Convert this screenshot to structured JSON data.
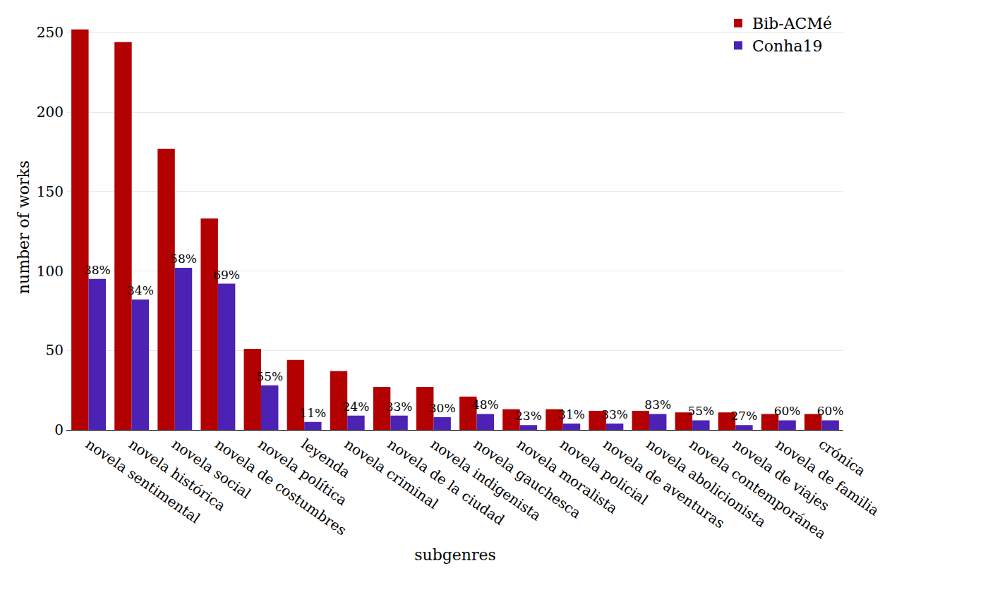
{
  "chart_data": {
    "type": "bar",
    "x_label": "subgenres",
    "y_label": "number of works",
    "categories": [
      "novela sentimental",
      "novela histórica",
      "novela social",
      "novela de costumbres",
      "novela política",
      "leyenda",
      "novela criminal",
      "novela de la ciudad",
      "novela indigenista",
      "novela gauchesca",
      "novela moralista",
      "novela policial",
      "novela de aventuras",
      "novela abolicionista",
      "novela contemporánea",
      "novela de viajes",
      "novela de familia",
      "crónica"
    ],
    "series": [
      {
        "name": "Bib-ACMé",
        "color": "#b30000",
        "values": [
          252,
          244,
          177,
          133,
          51,
          44,
          37,
          27,
          27,
          21,
          13,
          13,
          12,
          12,
          11,
          11,
          10,
          10
        ]
      },
      {
        "name": "Conha19",
        "color": "#4b22b4",
        "values": [
          95,
          82,
          102,
          92,
          28,
          5,
          9,
          9,
          8,
          10,
          3,
          4,
          4,
          10,
          6,
          3,
          6,
          6
        ],
        "percent_labels": [
          "38%",
          "34%",
          "58%",
          "69%",
          "55%",
          "11%",
          "24%",
          "33%",
          "30%",
          "48%",
          "23%",
          "31%",
          "33%",
          "83%",
          "55%",
          "27%",
          "60%",
          "60%"
        ]
      }
    ],
    "ylim": [
      0,
      255
    ],
    "yticks": [
      0,
      50,
      100,
      150,
      200,
      250
    ],
    "grid": true,
    "legend": "top-right"
  }
}
